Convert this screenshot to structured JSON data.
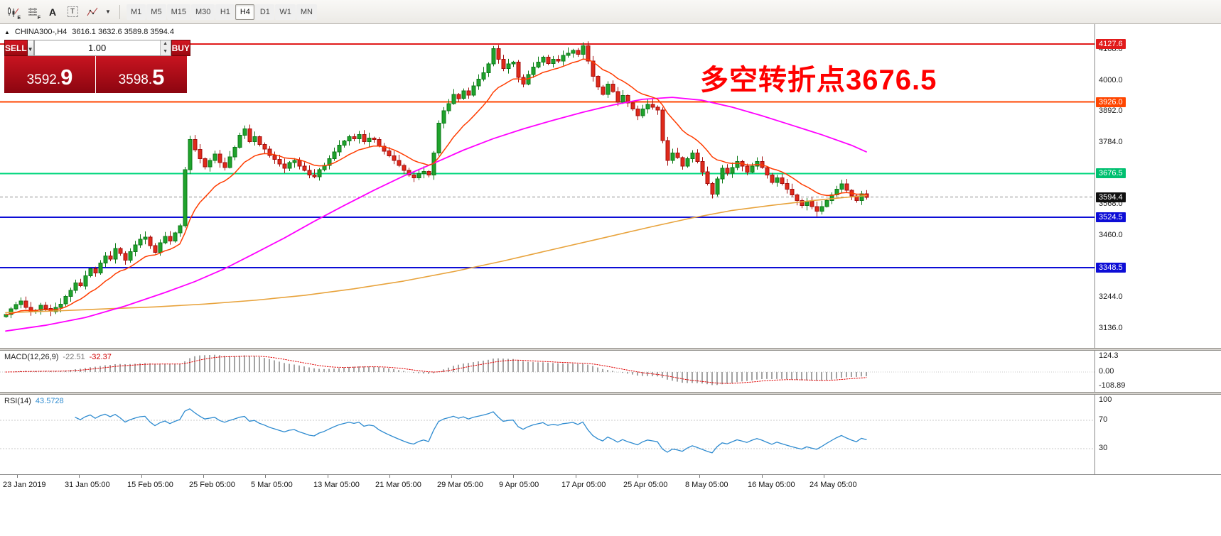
{
  "toolbar": {
    "icon_subs": {
      "one": "E",
      "two": "F"
    },
    "glyphs": {
      "a": "A",
      "t": "T"
    },
    "timeframes": [
      "M1",
      "M5",
      "M15",
      "M30",
      "H1",
      "H4",
      "D1",
      "W1",
      "MN"
    ],
    "active_timeframe": "H4"
  },
  "chart_header": {
    "marker": "▲",
    "symbol": "CHINA300-,H4",
    "ohlc": "3616.1 3632.6 3589.8 3594.4"
  },
  "trade_panel": {
    "sell_label": "SELL",
    "buy_label": "BUY",
    "volume": "1.00",
    "bid_int": "3592.",
    "bid_frac": "9",
    "ask_int": "3598.",
    "ask_frac": "5"
  },
  "annotation": {
    "text": "多空转折点3676.5",
    "color": "#ff0000"
  },
  "levels": [
    {
      "price": 4127.6,
      "label": "4127.6",
      "color": "#e11b1b",
      "width": 2,
      "badge_bg": "#e11b1b"
    },
    {
      "price": 3926.0,
      "label": "3926.0",
      "color": "#ff4600",
      "width": 2,
      "badge_bg": "#ff4600"
    },
    {
      "price": 3676.5,
      "label": "3676.5",
      "color": "#00d77e",
      "width": 2,
      "badge_bg": "#00c070"
    },
    {
      "price": 3594.4,
      "label": "3594.4",
      "color": "#8a8a8a",
      "width": 1,
      "dash": "4,3",
      "badge_bg": "#101010"
    },
    {
      "price": 3524.5,
      "label": "3524.5",
      "color": "#0d0dd6",
      "width": 2,
      "badge_bg": "#0d0dd6"
    },
    {
      "price": 3348.5,
      "label": "3348.5",
      "color": "#0d0dd6",
      "width": 2,
      "badge_bg": "#0d0dd6"
    }
  ],
  "price_axis": {
    "ticks": [
      "4108.0",
      "4000.0",
      "3892.0",
      "3784.0",
      "3568.0",
      "3460.0",
      "3244.0",
      "3136.0"
    ]
  },
  "chart_data": {
    "type": "candlestick",
    "symbol": "CHINA300-",
    "timeframe": "H4",
    "ohlc_display": {
      "open": 3616.1,
      "high": 3632.6,
      "low": 3589.8,
      "close": 3594.4
    },
    "x_labels": [
      "23 Jan 2019",
      "31 Jan 05:00",
      "15 Feb 05:00",
      "25 Feb 05:00",
      "5 Mar 05:00",
      "13 Mar 05:00",
      "21 Mar 05:00",
      "29 Mar 05:00",
      "9 Apr 05:00",
      "17 Apr 05:00",
      "25 Apr 05:00",
      "8 May 05:00",
      "16 May 05:00",
      "24 May 05:00"
    ],
    "ylim": [
      3136,
      4197
    ],
    "candles": {
      "closes": [
        3185,
        3205,
        3220,
        3232,
        3210,
        3195,
        3200,
        3218,
        3206,
        3196,
        3210,
        3222,
        3248,
        3270,
        3295,
        3285,
        3320,
        3345,
        3330,
        3365,
        3390,
        3378,
        3415,
        3398,
        3375,
        3405,
        3428,
        3448,
        3455,
        3425,
        3402,
        3435,
        3458,
        3442,
        3470,
        3495,
        3690,
        3795,
        3760,
        3728,
        3700,
        3722,
        3745,
        3715,
        3698,
        3735,
        3768,
        3810,
        3832,
        3788,
        3805,
        3778,
        3762,
        3740,
        3726,
        3710,
        3695,
        3715,
        3722,
        3702,
        3688,
        3672,
        3665,
        3690,
        3705,
        3728,
        3752,
        3775,
        3790,
        3805,
        3798,
        3812,
        3788,
        3800,
        3795,
        3772,
        3755,
        3738,
        3722,
        3705,
        3688,
        3672,
        3662,
        3676,
        3684,
        3672,
        3748,
        3852,
        3895,
        3920,
        3952,
        3938,
        3965,
        3950,
        3982,
        4005,
        4028,
        4058,
        4112,
        4075,
        4042,
        4058,
        4065,
        4012,
        3988,
        4022,
        4048,
        4065,
        4082,
        4060,
        4075,
        4068,
        4088,
        4096,
        4105,
        4092,
        4122,
        4068,
        4015,
        3978,
        3952,
        3988,
        3962,
        3925,
        3948,
        3922,
        3902,
        3878,
        3902,
        3918,
        3908,
        3898,
        3792,
        3722,
        3748,
        3732,
        3702,
        3728,
        3748,
        3718,
        3682,
        3642,
        3605,
        3658,
        3695,
        3678,
        3698,
        3718,
        3702,
        3682,
        3702,
        3718,
        3698,
        3672,
        3645,
        3662,
        3642,
        3622,
        3602,
        3582,
        3565,
        3580,
        3562,
        3545,
        3562,
        3582,
        3602,
        3622,
        3640,
        3618,
        3598,
        3582,
        3606,
        3594
      ]
    },
    "overlays": {
      "ma_fast": {
        "type": "ema",
        "period": 13
      },
      "ma_slow_points": [
        [
          0,
          3128
        ],
        [
          8,
          3148
        ],
        [
          16,
          3175
        ],
        [
          24,
          3215
        ],
        [
          32,
          3262
        ],
        [
          38,
          3300
        ],
        [
          44,
          3345
        ],
        [
          50,
          3398
        ],
        [
          56,
          3452
        ],
        [
          62,
          3510
        ],
        [
          68,
          3565
        ],
        [
          74,
          3618
        ],
        [
          80,
          3668
        ],
        [
          86,
          3712
        ],
        [
          92,
          3758
        ],
        [
          98,
          3798
        ],
        [
          104,
          3832
        ],
        [
          110,
          3862
        ],
        [
          116,
          3890
        ],
        [
          122,
          3915
        ],
        [
          128,
          3935
        ],
        [
          134,
          3942
        ],
        [
          140,
          3932
        ],
        [
          146,
          3908
        ],
        [
          152,
          3878
        ],
        [
          158,
          3845
        ],
        [
          164,
          3812
        ],
        [
          170,
          3775
        ],
        [
          173,
          3752
        ]
      ],
      "ma_long_points": [
        [
          0,
          3192
        ],
        [
          10,
          3198
        ],
        [
          20,
          3205
        ],
        [
          30,
          3212
        ],
        [
          40,
          3222
        ],
        [
          50,
          3235
        ],
        [
          60,
          3252
        ],
        [
          70,
          3275
        ],
        [
          80,
          3302
        ],
        [
          90,
          3335
        ],
        [
          100,
          3372
        ],
        [
          110,
          3412
        ],
        [
          120,
          3452
        ],
        [
          130,
          3492
        ],
        [
          138,
          3522
        ],
        [
          146,
          3548
        ],
        [
          154,
          3566
        ],
        [
          162,
          3582
        ],
        [
          168,
          3592
        ],
        [
          173,
          3600
        ]
      ]
    },
    "indicators": {
      "macd": {
        "label_name": "MACD(12,26,9)",
        "value_main": "-22.51",
        "value_signal": "-32.37",
        "params": "12,26,9",
        "axis": [
          "124.3",
          "0.00",
          "-108.89"
        ]
      },
      "rsi": {
        "label_name": "RSI(14)",
        "value": "43.5728",
        "period": 14,
        "levels": [
          70,
          30
        ],
        "axis": [
          "100",
          "70",
          "30"
        ]
      }
    },
    "style": {
      "up_fill": "#1fa32c",
      "up_border": "#0c7a18",
      "down_fill": "#e02a1a",
      "down_border": "#a50f0f",
      "ma_fast_color": "#ff3c00",
      "ma_slow_color": "#ff00ff",
      "ma_long_color": "#e8a33c",
      "macd_hist_color": "#a3a3a3",
      "macd_signal_color": "#e00000",
      "rsi_color": "#2e8bd0"
    }
  }
}
